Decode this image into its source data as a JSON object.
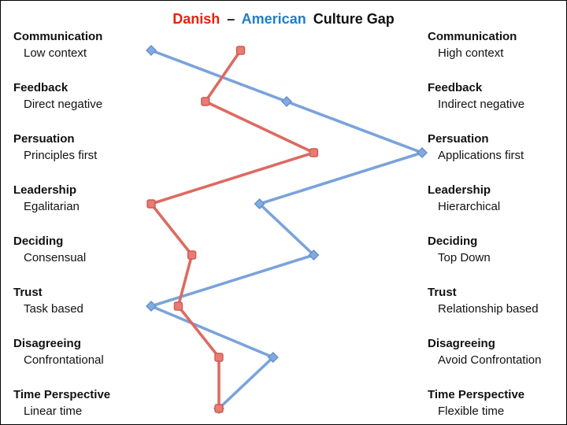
{
  "title": {
    "danish": "Danish",
    "dash": "–",
    "american": "American",
    "rest": "Culture Gap"
  },
  "colors": {
    "danish_title": "#e8220f",
    "american_title": "#1f7ec8",
    "danish_line": "#dd6a61",
    "danish_marker_fill": "#e87b72",
    "danish_marker_stroke": "#d05a51",
    "american_line": "#7aa3db",
    "american_marker_fill": "#82aae0",
    "american_marker_stroke": "#6590cc",
    "background": "#ffffff"
  },
  "chart_data": {
    "type": "line",
    "title": "Danish – American Culture Gap",
    "orientation": "horizontal-scale-per-category-row",
    "grid": false,
    "legend_position": "colored-words-in-title",
    "scale": {
      "min": 0,
      "max": 100,
      "note": "0 = left-side descriptor, 100 = right-side descriptor"
    },
    "categories": [
      "Communication",
      "Feedback",
      "Persuation",
      "Leadership",
      "Deciding",
      "Trust",
      "Disagreeing",
      "Time Perspective"
    ],
    "left_descriptors": [
      "Low context",
      "Direct negative",
      "Principles first",
      "Egalitarian",
      "Consensual",
      "Task based",
      "Confrontational",
      "Linear time"
    ],
    "right_descriptors": [
      "High context",
      "Indirect negative",
      "Applications first",
      "Hierarchical",
      "Top Down",
      "Relationship based",
      "Avoid Confrontation",
      "Flexible time"
    ],
    "series": [
      {
        "name": "American",
        "marker": "diamond",
        "values": [
          0,
          50,
          100,
          40,
          60,
          0,
          45,
          25
        ]
      },
      {
        "name": "Danish",
        "marker": "square",
        "values": [
          33,
          20,
          60,
          0,
          15,
          10,
          25,
          25
        ]
      }
    ]
  }
}
